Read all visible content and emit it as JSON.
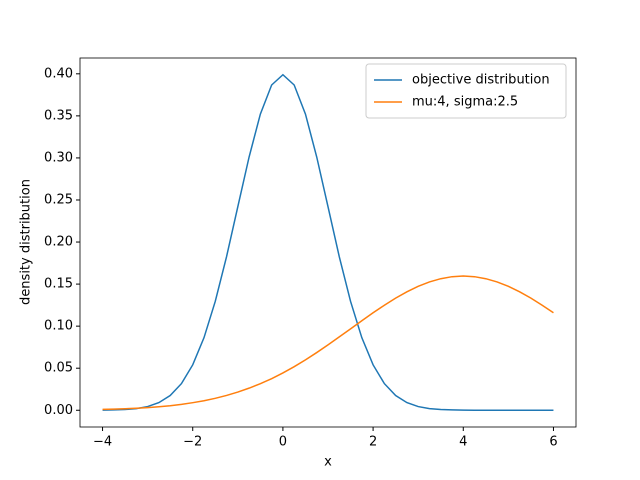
{
  "chart_data": {
    "type": "line",
    "xlabel": "x",
    "ylabel": "density distribution",
    "x": [
      -4,
      -3.75,
      -3.5,
      -3.25,
      -3,
      -2.75,
      -2.5,
      -2.25,
      -2,
      -1.75,
      -1.5,
      -1.25,
      -1,
      -0.75,
      -0.5,
      -0.25,
      0,
      0.25,
      0.5,
      0.75,
      1,
      1.25,
      1.5,
      1.75,
      2,
      2.25,
      2.5,
      2.75,
      3,
      3.25,
      3.5,
      3.75,
      4,
      4.25,
      4.5,
      4.75,
      5,
      5.25,
      5.5,
      5.75,
      6
    ],
    "series": [
      {
        "name": "objective distribution",
        "color": "#1f77b4",
        "values": [
          0.0001,
          0.0004,
          0.0009,
          0.002,
          0.0044,
          0.0091,
          0.0175,
          0.0317,
          0.054,
          0.0863,
          0.1295,
          0.1826,
          0.242,
          0.3011,
          0.3521,
          0.3867,
          0.3989,
          0.3867,
          0.3521,
          0.3011,
          0.242,
          0.1826,
          0.1295,
          0.0863,
          0.054,
          0.0317,
          0.0175,
          0.0091,
          0.0044,
          0.002,
          0.0009,
          0.0004,
          0.0001,
          0,
          0,
          0,
          0,
          0,
          0,
          0,
          0
        ]
      },
      {
        "name": "mu:4, sigma:2.5",
        "color": "#ff7f0e",
        "values": [
          0.001,
          0.0013,
          0.0018,
          0.0024,
          0.0032,
          0.0042,
          0.0054,
          0.007,
          0.009,
          0.0113,
          0.0142,
          0.0176,
          0.0216,
          0.0263,
          0.0316,
          0.0376,
          0.0444,
          0.0518,
          0.0599,
          0.0686,
          0.0777,
          0.0872,
          0.0968,
          0.1064,
          0.1159,
          0.1249,
          0.1333,
          0.1408,
          0.1473,
          0.1526,
          0.1564,
          0.1588,
          0.1596,
          0.1588,
          0.1564,
          0.1526,
          0.1473,
          0.1408,
          0.1333,
          0.1249,
          0.1159
        ]
      }
    ],
    "xlim": [
      -4.5,
      6.5
    ],
    "ylim": [
      -0.0199,
      0.4188
    ],
    "xticks": [
      {
        "value": -4,
        "label": "−4"
      },
      {
        "value": -2,
        "label": "−2"
      },
      0,
      2,
      4,
      6
    ],
    "yticks": [
      {
        "value": 0,
        "label": "0.00"
      },
      {
        "value": 0.05,
        "label": "0.05"
      },
      {
        "value": 0.1,
        "label": "0.10"
      },
      {
        "value": 0.15,
        "label": "0.15"
      },
      {
        "value": 0.2,
        "label": "0.20"
      },
      {
        "value": 0.25,
        "label": "0.25"
      },
      {
        "value": 0.3,
        "label": "0.30"
      },
      {
        "value": 0.35,
        "label": "0.35"
      },
      {
        "value": 0.4,
        "label": "0.40"
      }
    ],
    "legend": "upper right",
    "grid": false
  }
}
